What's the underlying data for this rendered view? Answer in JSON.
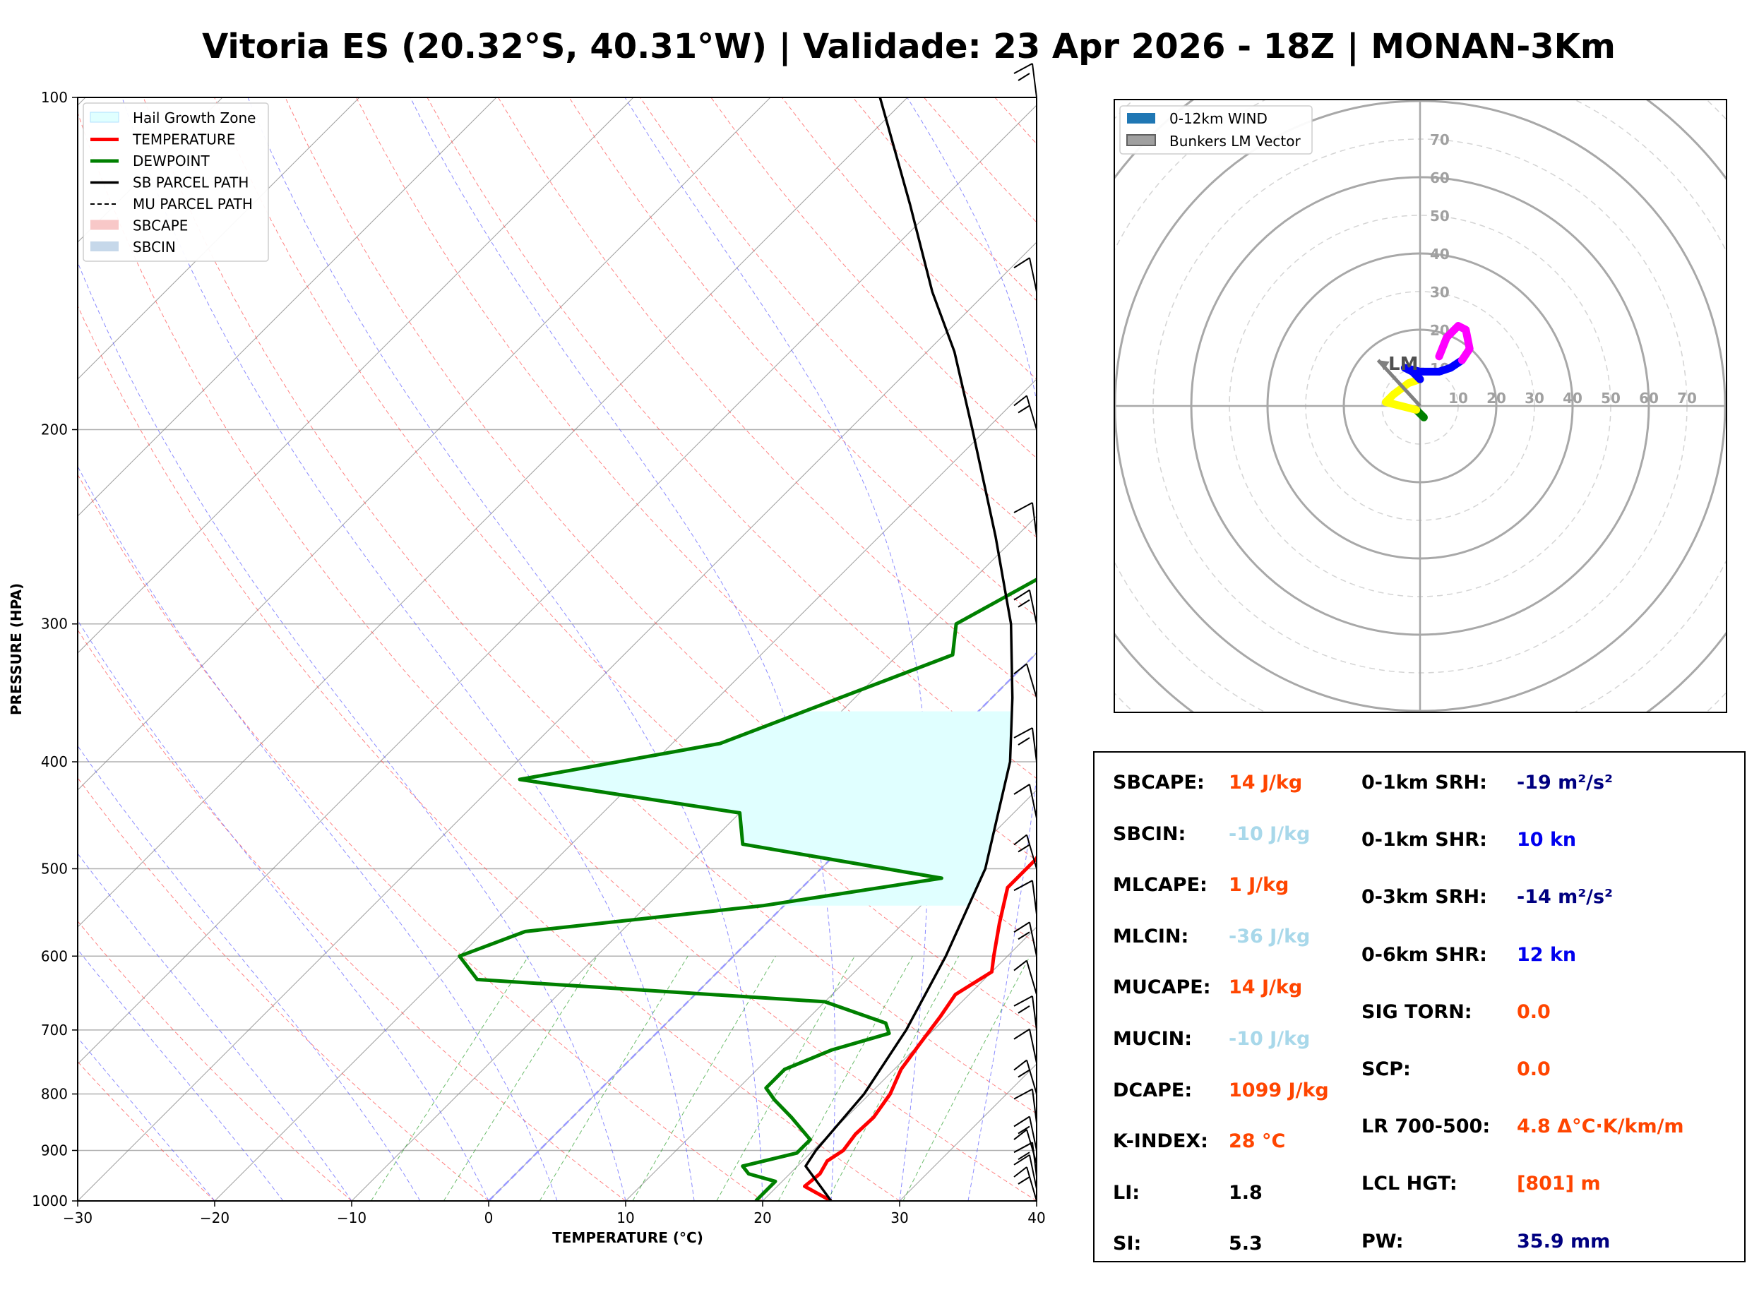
{
  "title": "Vitoria ES (20.32°S, 40.31°W) | Validade: 23 Apr 2026 - 18Z | MONAN-3Km",
  "chart_data": [
    {
      "type": "line",
      "subtype": "skew-T log-P sounding",
      "xlabel": "TEMPERATURE (°C)",
      "ylabel": "PRESSURE (HPA)",
      "xlim": [
        -30,
        40
      ],
      "ylim": [
        1000,
        100
      ],
      "y_scale": "log",
      "x_ticks": [
        "−30",
        "−20",
        "−10",
        "0",
        "10",
        "20",
        "30",
        "40"
      ],
      "y_ticks": [
        "100",
        "200",
        "300",
        "400",
        "500",
        "600",
        "700",
        "800",
        "900",
        "1000"
      ],
      "legend_position": "top-left",
      "legend": [
        "Hail Growth Zone",
        "TEMPERATURE",
        "DEWPOINT",
        "SB PARCEL PATH",
        "MU PARCEL PATH",
        "SBCAPE",
        "SBCIN"
      ],
      "colors": {
        "temperature": "#ff0000",
        "dewpoint": "#008000",
        "parcel": "#000000",
        "hail_zone": "#e0ffff",
        "dry_adiabats": "#ff4d4d",
        "moist_adiabats": "#5a5aff",
        "mixing_ratio": "#2ca02c",
        "isotherms": "#888888",
        "freezing_level": "#9a9aff"
      },
      "series": [
        {
          "name": "TEMPERATURE",
          "points": [
            [
              1000,
              25.0
            ],
            [
              970,
              22.0
            ],
            [
              945,
              22.2
            ],
            [
              920,
              21.8
            ],
            [
              900,
              22.2
            ],
            [
              870,
              21.9
            ],
            [
              840,
              22.0
            ],
            [
              800,
              21.5
            ],
            [
              760,
              20.5
            ],
            [
              720,
              20.0
            ],
            [
              680,
              19.5
            ],
            [
              650,
              19.0
            ],
            [
              620,
              20.0
            ],
            [
              600,
              19.0
            ],
            [
              560,
              17.0
            ],
            [
              520,
              15.0
            ],
            [
              490,
              15.0
            ],
            [
              460,
              14.0
            ],
            [
              420,
              12.0
            ],
            [
              400,
              11.0
            ],
            [
              360,
              7.5
            ],
            [
              330,
              4.5
            ],
            [
              300,
              1.0
            ],
            [
              270,
              -2.5
            ],
            [
              250,
              -4.5
            ],
            [
              220,
              -9.5
            ],
            [
              200,
              -13.0
            ],
            [
              180,
              -17.0
            ],
            [
              160,
              -20.5
            ],
            [
              140,
              -24.0
            ],
            [
              120,
              -29.0
            ],
            [
              100,
              -33.0
            ]
          ]
        },
        {
          "name": "DEWPOINT",
          "points": [
            [
              1000,
              19.5
            ],
            [
              960,
              19.5
            ],
            [
              945,
              17.0
            ],
            [
              930,
              16.0
            ],
            [
              905,
              19.0
            ],
            [
              880,
              19.0
            ],
            [
              840,
              16.0
            ],
            [
              810,
              13.5
            ],
            [
              790,
              12.0
            ],
            [
              760,
              12.0
            ],
            [
              730,
              14.0
            ],
            [
              705,
              17.0
            ],
            [
              690,
              16.0
            ],
            [
              660,
              10.0
            ],
            [
              630,
              -17.0
            ],
            [
              600,
              -20.0
            ],
            [
              570,
              -17.0
            ],
            [
              540,
              -1.5
            ],
            [
              510,
              9.5
            ],
            [
              475,
              -7.5
            ],
            [
              445,
              -10.0
            ],
            [
              415,
              -28.5
            ],
            [
              385,
              -16.5
            ],
            [
              320,
              -6.0
            ],
            [
              300,
              -8.0
            ],
            [
              270,
              -5.0
            ],
            [
              250,
              -7.0
            ],
            [
              225,
              -11.0
            ],
            [
              200,
              -5.0
            ],
            [
              180,
              -5.5
            ],
            [
              160,
              -8.0
            ],
            [
              140,
              -10.5
            ],
            [
              120,
              -13.0
            ],
            [
              100,
              -14.5
            ]
          ]
        },
        {
          "name": "SB PARCEL PATH",
          "points": [
            [
              1000,
              25.0
            ],
            [
              930,
              20.6
            ],
            [
              900,
              20.2
            ],
            [
              800,
              19.6
            ],
            [
              700,
              18.0
            ],
            [
              600,
              15.5
            ],
            [
              500,
              12.0
            ],
            [
              400,
              6.0
            ],
            [
              350,
              1.5
            ],
            [
              300,
              -4.0
            ],
            [
              250,
              -11.5
            ],
            [
              200,
              -21.0
            ],
            [
              170,
              -28.0
            ],
            [
              150,
              -34.0
            ],
            [
              125,
              -42.0
            ],
            [
              100,
              -52.0
            ]
          ]
        }
      ],
      "hail_growth_zone_hpa": [
        540,
        360
      ],
      "wind_barbs_levels_hpa": [
        1000,
        975,
        950,
        925,
        900,
        850,
        800,
        750,
        700,
        650,
        600,
        550,
        500,
        450,
        400,
        350,
        300,
        250,
        200,
        150,
        100
      ]
    },
    {
      "type": "line",
      "subtype": "hodograph",
      "legend_position": "top-left",
      "legend": [
        "0-12km WIND",
        "Bunkers LM Vector"
      ],
      "ring_labels": [
        "10",
        "20",
        "30",
        "40",
        "50",
        "60",
        "70"
      ],
      "lm_label": "LM",
      "segments": [
        {
          "color": "#008000",
          "points": [
            [
              1,
              -3
            ],
            [
              -1,
              -1
            ]
          ]
        },
        {
          "color": "#ffff00",
          "points": [
            [
              -1,
              -1
            ],
            [
              -5,
              0
            ],
            [
              -9,
              1
            ],
            [
              -7,
              3
            ],
            [
              -3,
              6
            ],
            [
              0,
              7
            ]
          ]
        },
        {
          "color": "#0000ff",
          "points": [
            [
              0,
              7
            ],
            [
              -2,
              9
            ],
            [
              -4,
              10
            ],
            [
              0,
              9
            ],
            [
              5,
              9
            ],
            [
              8,
              10
            ],
            [
              11,
              12
            ]
          ]
        },
        {
          "color": "#ff00ff",
          "points": [
            [
              11,
              12
            ],
            [
              13,
              15
            ],
            [
              12,
              20
            ],
            [
              10,
              21
            ],
            [
              7,
              18
            ],
            [
              5,
              13
            ]
          ]
        }
      ],
      "bunkers_lm": [
        -11,
        12
      ]
    }
  ],
  "params_left": [
    {
      "label": "SBCAPE:",
      "value": "14 J/kg",
      "color": "#ff4500"
    },
    {
      "label": "SBCIN:",
      "value": "-10 J/kg",
      "color": "#a8d8ea"
    },
    {
      "label": "MLCAPE:",
      "value": "1 J/kg",
      "color": "#ff4500"
    },
    {
      "label": "MLCIN:",
      "value": "-36 J/kg",
      "color": "#a8d8ea"
    },
    {
      "label": "MUCAPE:",
      "value": "14 J/kg",
      "color": "#ff4500"
    },
    {
      "label": "MUCIN:",
      "value": "-10 J/kg",
      "color": "#a8d8ea"
    },
    {
      "label": "DCAPE:",
      "value": "1099 J/kg",
      "color": "#ff4500"
    },
    {
      "label": "K-INDEX:",
      "value": "28 °C",
      "color": "#ff4500"
    },
    {
      "label": "LI:",
      "value": "1.8",
      "color": "#000000"
    },
    {
      "label": "SI:",
      "value": "5.3",
      "color": "#000000"
    }
  ],
  "params_right": [
    {
      "label": "0-1km SRH:",
      "value": "-19 m²/s²",
      "color": "#000080"
    },
    {
      "label": "0-1km SHR:",
      "value": "10 kn",
      "color": "#0000ee"
    },
    {
      "label": "0-3km SRH:",
      "value": "-14 m²/s²",
      "color": "#000080"
    },
    {
      "label": "0-6km SHR:",
      "value": "12 kn",
      "color": "#0000ee"
    },
    {
      "label": "SIG TORN:",
      "value": "0.0",
      "color": "#ff4500"
    },
    {
      "label": "SCP:",
      "value": "0.0",
      "color": "#ff4500"
    },
    {
      "label": "LR 700-500:",
      "value": "4.8 Δ°C·K/km/m",
      "color": "#ff4500"
    },
    {
      "label": "LCL HGT:",
      "value": "[801] m",
      "color": "#ff4500"
    },
    {
      "label": "PW:",
      "value": "35.9 mm",
      "color": "#000080"
    }
  ]
}
